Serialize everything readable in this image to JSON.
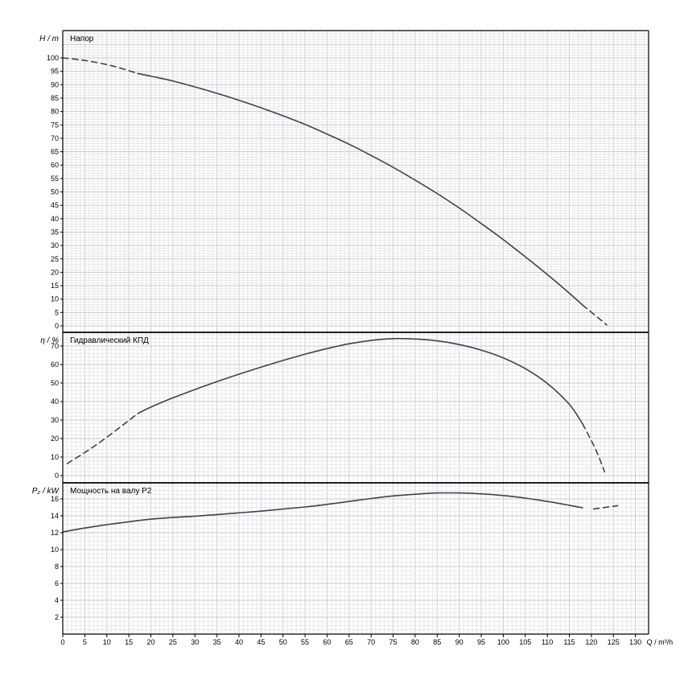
{
  "chart_data": {
    "type": "line",
    "line_color": "#3b444c",
    "grid_minor_color": "#e8e8e8",
    "grid_major_color": "#cbcbcb",
    "frame_color": "#000000",
    "x_axis": {
      "label": "Q / m³/h",
      "min": 0,
      "max": 130,
      "major_step": 5,
      "minor_step": 1,
      "tick_labels": [
        0,
        5,
        10,
        15,
        20,
        25,
        30,
        35,
        40,
        45,
        50,
        55,
        60,
        65,
        70,
        75,
        80,
        85,
        90,
        95,
        100,
        105,
        110,
        115,
        120,
        125,
        130
      ]
    },
    "panels": [
      {
        "id": "head",
        "title": "Напор",
        "y_label": "H / m",
        "label_min": 0,
        "y_tick_max": 100,
        "major_step": 5,
        "minor_step": 1,
        "series": [
          {
            "style": "dashed",
            "points": [
              [
                0,
                100
              ],
              [
                4,
                99.3
              ],
              [
                8,
                98.2
              ],
              [
                12,
                96.7
              ],
              [
                17,
                94.2
              ]
            ]
          },
          {
            "style": "solid",
            "points": [
              [
                17,
                94.2
              ],
              [
                20,
                93.2
              ],
              [
                25,
                91.4
              ],
              [
                30,
                89.2
              ],
              [
                35,
                86.8
              ],
              [
                40,
                84.2
              ],
              [
                45,
                81.4
              ],
              [
                50,
                78.4
              ],
              [
                55,
                75.2
              ],
              [
                60,
                71.6
              ],
              [
                65,
                67.8
              ],
              [
                70,
                63.6
              ],
              [
                75,
                59.2
              ],
              [
                80,
                54.4
              ],
              [
                85,
                49.4
              ],
              [
                90,
                44.0
              ],
              [
                95,
                38.2
              ],
              [
                100,
                32.2
              ],
              [
                105,
                25.8
              ],
              [
                110,
                19.2
              ],
              [
                115,
                12.2
              ],
              [
                118,
                7.8
              ]
            ]
          },
          {
            "style": "dashed",
            "points": [
              [
                118,
                7.8
              ],
              [
                123.5,
                0.4
              ]
            ]
          }
        ]
      },
      {
        "id": "efficiency",
        "title": "Гидравлический КПД",
        "y_label": "η / %",
        "label_min": 0,
        "y_tick_max": 70,
        "major_step": 10,
        "minor_step": 2,
        "series": [
          {
            "style": "dashed",
            "points": [
              [
                1,
                6.5
              ],
              [
                6,
                14
              ],
              [
                11,
                22.5
              ],
              [
                17,
                33.5
              ]
            ]
          },
          {
            "style": "solid",
            "points": [
              [
                17,
                33.5
              ],
              [
                20,
                37
              ],
              [
                25,
                42
              ],
              [
                30,
                46.5
              ],
              [
                35,
                50.8
              ],
              [
                40,
                54.8
              ],
              [
                45,
                58.6
              ],
              [
                50,
                62.2
              ],
              [
                55,
                65.6
              ],
              [
                60,
                68.6
              ],
              [
                65,
                71.2
              ],
              [
                70,
                73.0
              ],
              [
                75,
                74.0
              ],
              [
                80,
                73.8
              ],
              [
                85,
                72.8
              ],
              [
                90,
                70.8
              ],
              [
                95,
                67.8
              ],
              [
                100,
                63.6
              ],
              [
                105,
                57.8
              ],
              [
                110,
                49.8
              ],
              [
                115,
                38.5
              ],
              [
                118,
                28.0
              ]
            ]
          },
          {
            "style": "dashed",
            "points": [
              [
                118,
                28.0
              ],
              [
                121,
                14
              ],
              [
                123,
                2
              ]
            ]
          }
        ]
      },
      {
        "id": "power",
        "title": "Мощность на валу P2",
        "y_label": "P₂ / kW",
        "label_min": 2,
        "y_tick_max": 16,
        "major_step": 2,
        "minor_step": 0.5,
        "series": [
          {
            "style": "solid",
            "points": [
              [
                0,
                12.1
              ],
              [
                5,
                12.55
              ],
              [
                10,
                12.95
              ],
              [
                15,
                13.3
              ],
              [
                20,
                13.6
              ],
              [
                25,
                13.8
              ],
              [
                30,
                13.95
              ],
              [
                35,
                14.15
              ],
              [
                40,
                14.35
              ],
              [
                45,
                14.55
              ],
              [
                50,
                14.8
              ],
              [
                55,
                15.05
              ],
              [
                60,
                15.35
              ],
              [
                65,
                15.7
              ],
              [
                70,
                16.05
              ],
              [
                75,
                16.35
              ],
              [
                80,
                16.55
              ],
              [
                85,
                16.7
              ],
              [
                90,
                16.7
              ],
              [
                95,
                16.6
              ],
              [
                100,
                16.4
              ],
              [
                105,
                16.1
              ],
              [
                110,
                15.7
              ],
              [
                115,
                15.25
              ],
              [
                118,
                14.95
              ]
            ]
          },
          {
            "style": "dashed",
            "points": [
              [
                120.5,
                14.8
              ],
              [
                126,
                15.2
              ]
            ]
          }
        ]
      }
    ]
  }
}
